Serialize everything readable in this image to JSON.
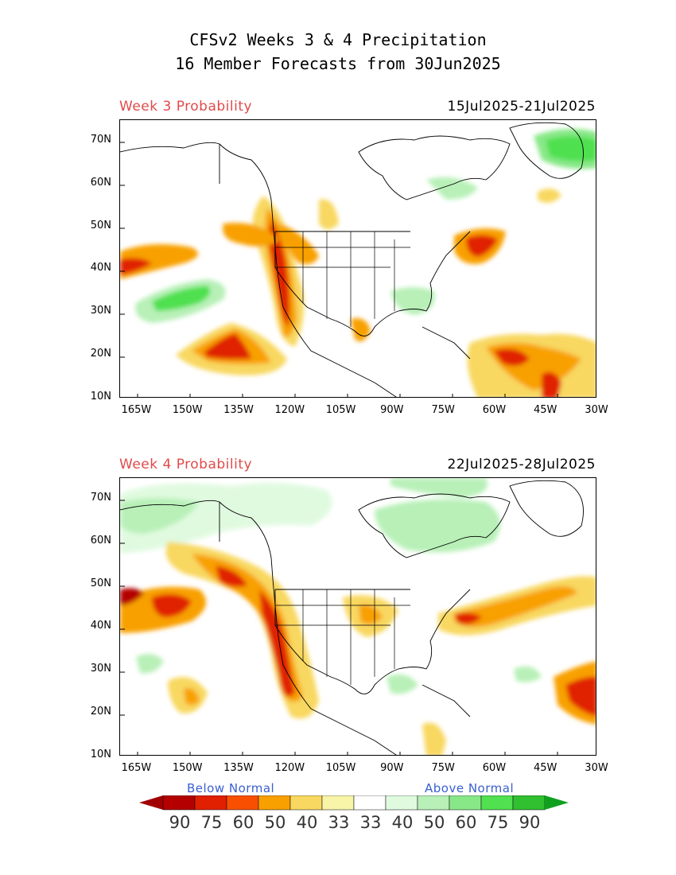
{
  "title_line1": "CFSv2 Weeks 3 & 4 Precipitation",
  "title_line2": "16 Member Forecasts from 30Jun2025",
  "panels": [
    {
      "label": "Week 3 Probability",
      "dates": "15Jul2025-21Jul2025"
    },
    {
      "label": "Week 4 Probability",
      "dates": "22Jul2025-28Jul2025"
    }
  ],
  "axes": {
    "lat_labels": [
      "70N",
      "60N",
      "50N",
      "40N",
      "30N",
      "20N",
      "10N"
    ],
    "lat_values": [
      70,
      60,
      50,
      40,
      30,
      20,
      10
    ],
    "lon_labels": [
      "165W",
      "150W",
      "135W",
      "120W",
      "105W",
      "90W",
      "75W",
      "60W",
      "45W",
      "30W"
    ],
    "lon_values": [
      -165,
      -150,
      -135,
      -120,
      -105,
      -90,
      -75,
      -60,
      -45,
      -30
    ],
    "lon_range": [
      -170,
      -30
    ],
    "lat_range": [
      10,
      75
    ]
  },
  "legend": {
    "below_label": "Below Normal",
    "above_label": "Above Normal",
    "numbers": [
      "90",
      "75",
      "60",
      "50",
      "40",
      "33",
      "33",
      "40",
      "50",
      "60",
      "75",
      "90"
    ],
    "colors": [
      "#b40000",
      "#e02000",
      "#f85000",
      "#f8a000",
      "#f8d860",
      "#f8f4a8",
      "#ffffff",
      "#e0fae0",
      "#b8f0b8",
      "#88e888",
      "#50e050",
      "#30c030"
    ],
    "end_left_color": "#a00000",
    "end_right_color": "#10a020"
  }
}
